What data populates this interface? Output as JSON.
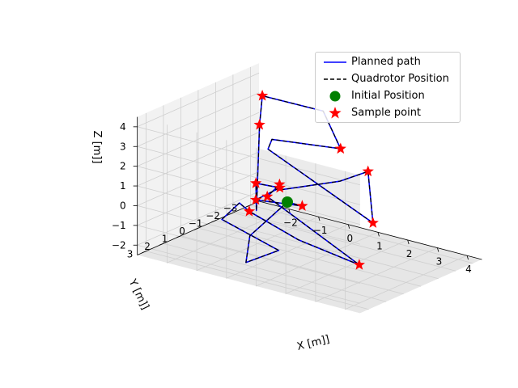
{
  "chart_data": {
    "type": "line-3d",
    "title": "",
    "xlabel": "X [m]]",
    "ylabel": "Y [m]]",
    "zlabel": "Z [m]]",
    "xticks": [
      "−2",
      "−1",
      "0",
      "1",
      "2",
      "3",
      "4"
    ],
    "yticks": [
      "3",
      "2",
      "1",
      "0",
      "−1",
      "−2",
      "−3"
    ],
    "zticks": [
      "4",
      "3",
      "2",
      "1",
      "0",
      "−1",
      "−2"
    ],
    "xlim": [
      -3,
      4.5
    ],
    "ylim": [
      -3.5,
      3.5
    ],
    "zlim": [
      -2.5,
      4.5
    ],
    "grid": true,
    "legend_position": "top-right",
    "legend": [
      {
        "label": "Planned path",
        "style": "line",
        "color": "#0000ff"
      },
      {
        "label": "Quadrotor Position",
        "style": "dashed",
        "color": "#000000"
      },
      {
        "label": "Initial Position",
        "style": "circle",
        "color": "#008000"
      },
      {
        "label": "Sample point",
        "style": "star",
        "color": "#ff0000"
      }
    ],
    "initial_position": [
      0,
      0,
      0
    ],
    "sample_points": [
      [
        -2.6,
        -3.0,
        3.2
      ],
      [
        -2.4,
        -2.5,
        2.0
      ],
      [
        -1.6,
        -2.3,
        -0.8
      ],
      [
        -1.4,
        -0.2,
        -1.1
      ],
      [
        -1.2,
        -1.6,
        -0.2
      ],
      [
        -1.0,
        0.1,
        0.6
      ],
      [
        -0.5,
        0.3,
        0.2
      ],
      [
        -0.3,
        1.3,
        0.5
      ],
      [
        0.5,
        0.0,
        0.0
      ],
      [
        1.5,
        -0.5,
        3.1
      ],
      [
        2.6,
        -0.2,
        2.5
      ],
      [
        3.0,
        0.2,
        0.2
      ],
      [
        3.3,
        1.5,
        -1.3
      ]
    ],
    "path": [
      [
        0.0,
        0.0,
        0.0
      ],
      [
        0.5,
        0.0,
        0.0
      ],
      [
        -0.3,
        1.3,
        0.5
      ],
      [
        -1.6,
        -2.3,
        -0.8
      ],
      [
        -1.0,
        0.1,
        0.6
      ],
      [
        0.6,
        2.8,
        0.9
      ],
      [
        -2.4,
        -2.5,
        2.0
      ],
      [
        -2.6,
        -3.0,
        3.2
      ],
      [
        -0.2,
        -2.4,
        3.6
      ],
      [
        1.5,
        -0.5,
        3.1
      ],
      [
        -0.4,
        0.2,
        3.1
      ],
      [
        -0.3,
        0.6,
        2.8
      ],
      [
        3.0,
        0.2,
        0.2
      ],
      [
        2.6,
        -0.2,
        2.5
      ],
      [
        2.0,
        0.4,
        2.0
      ],
      [
        0.2,
        0.8,
        1.0
      ],
      [
        -1.2,
        -1.6,
        -0.2
      ],
      [
        -0.5,
        0.3,
        0.2
      ],
      [
        3.3,
        1.5,
        -1.3
      ],
      [
        1.2,
        1.4,
        -0.9
      ],
      [
        -1.4,
        -0.2,
        -1.1
      ],
      [
        -2.2,
        -1.0,
        -1.3
      ],
      [
        -1.5,
        1.2,
        -1.0
      ],
      [
        1.0,
        2.2,
        -1.2
      ],
      [
        0.6,
        3.4,
        -1.5
      ],
      [
        -0.5,
        1.3,
        -1.4
      ],
      [
        0.0,
        0.0,
        0.0
      ]
    ]
  }
}
